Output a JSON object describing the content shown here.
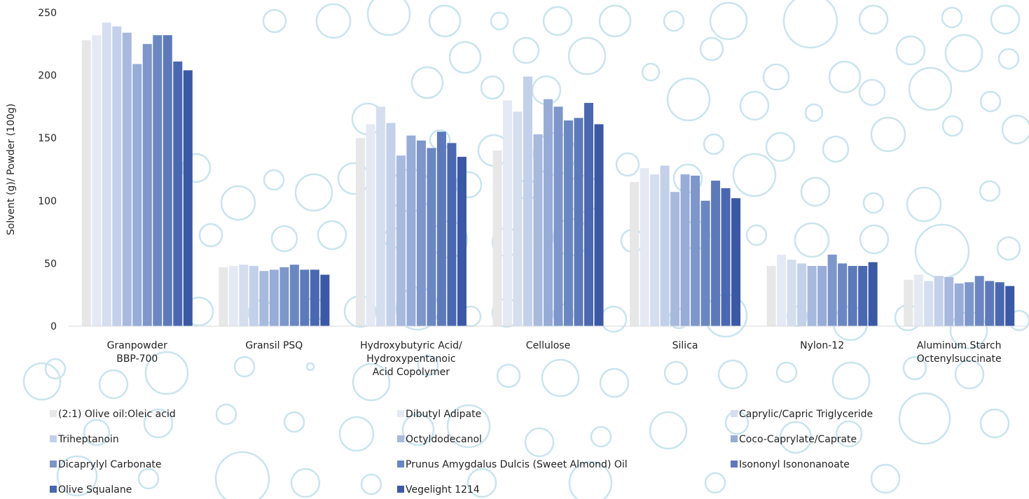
{
  "chart_data": {
    "type": "bar",
    "title": "",
    "xlabel": "",
    "ylabel": "Solvent (g)/ Powder (100g)",
    "ylim": [
      0,
      250
    ],
    "yticks": [
      0,
      50,
      100,
      150,
      200,
      250
    ],
    "grid": false,
    "legend_position": "bottom",
    "categories": [
      [
        "Granpowder",
        "BBP-700"
      ],
      [
        "Gransil PSQ"
      ],
      [
        "Hydroxybutyric Acid/",
        "Hydroxypentanoic",
        "Acid Copolymer"
      ],
      [
        "Cellulose"
      ],
      [
        "Silica"
      ],
      [
        "Nylon-12"
      ],
      [
        "Aluminum Starch",
        "Octenylsuccinate"
      ]
    ],
    "series": [
      {
        "name": "(2:1) Olive oil:Oleic acid",
        "color": "#e7e7e7",
        "values": [
          228,
          47,
          150,
          140,
          115,
          48,
          37
        ]
      },
      {
        "name": "Dibutyl Adipate",
        "color": "#e4e9f4",
        "values": [
          232,
          48,
          161,
          180,
          126,
          57,
          41
        ]
      },
      {
        "name": "Caprylic/Capric Triglyceride",
        "color": "#d5deef",
        "values": [
          242,
          49,
          175,
          171,
          121,
          53,
          36
        ]
      },
      {
        "name": "Triheptanoin",
        "color": "#c3d0e9",
        "values": [
          239,
          48,
          162,
          199,
          128,
          50,
          40
        ]
      },
      {
        "name": "Octyldodecanol",
        "color": "#a8b9de",
        "values": [
          234,
          44,
          136,
          153,
          107,
          48,
          39
        ]
      },
      {
        "name": "Coco-Caprylate/Caprate",
        "color": "#97acd7",
        "values": [
          209,
          45,
          152,
          181,
          121,
          48,
          34
        ]
      },
      {
        "name": "Dicaprylyl Carbonate",
        "color": "#7d96cb",
        "values": [
          225,
          47,
          148,
          175,
          120,
          57,
          35
        ]
      },
      {
        "name": "Prunus Amygdalus Dulcis (Sweet Almond) Oil",
        "color": "#6b87c3",
        "values": [
          232,
          49,
          142,
          164,
          100,
          50,
          40
        ]
      },
      {
        "name": "Isononyl Isononanoate",
        "color": "#5c79bb",
        "values": [
          232,
          45,
          155,
          166,
          116,
          48,
          36
        ]
      },
      {
        "name": "Olive Squalane",
        "color": "#4a67b1",
        "values": [
          211,
          45,
          146,
          178,
          110,
          48,
          35
        ]
      },
      {
        "name": "Vegelight 1214",
        "color": "#3b58a6",
        "values": [
          204,
          41,
          135,
          161,
          102,
          51,
          32
        ]
      }
    ]
  },
  "colors": {
    "bubble_stroke": "#c9e4ee",
    "text": "#222222"
  }
}
